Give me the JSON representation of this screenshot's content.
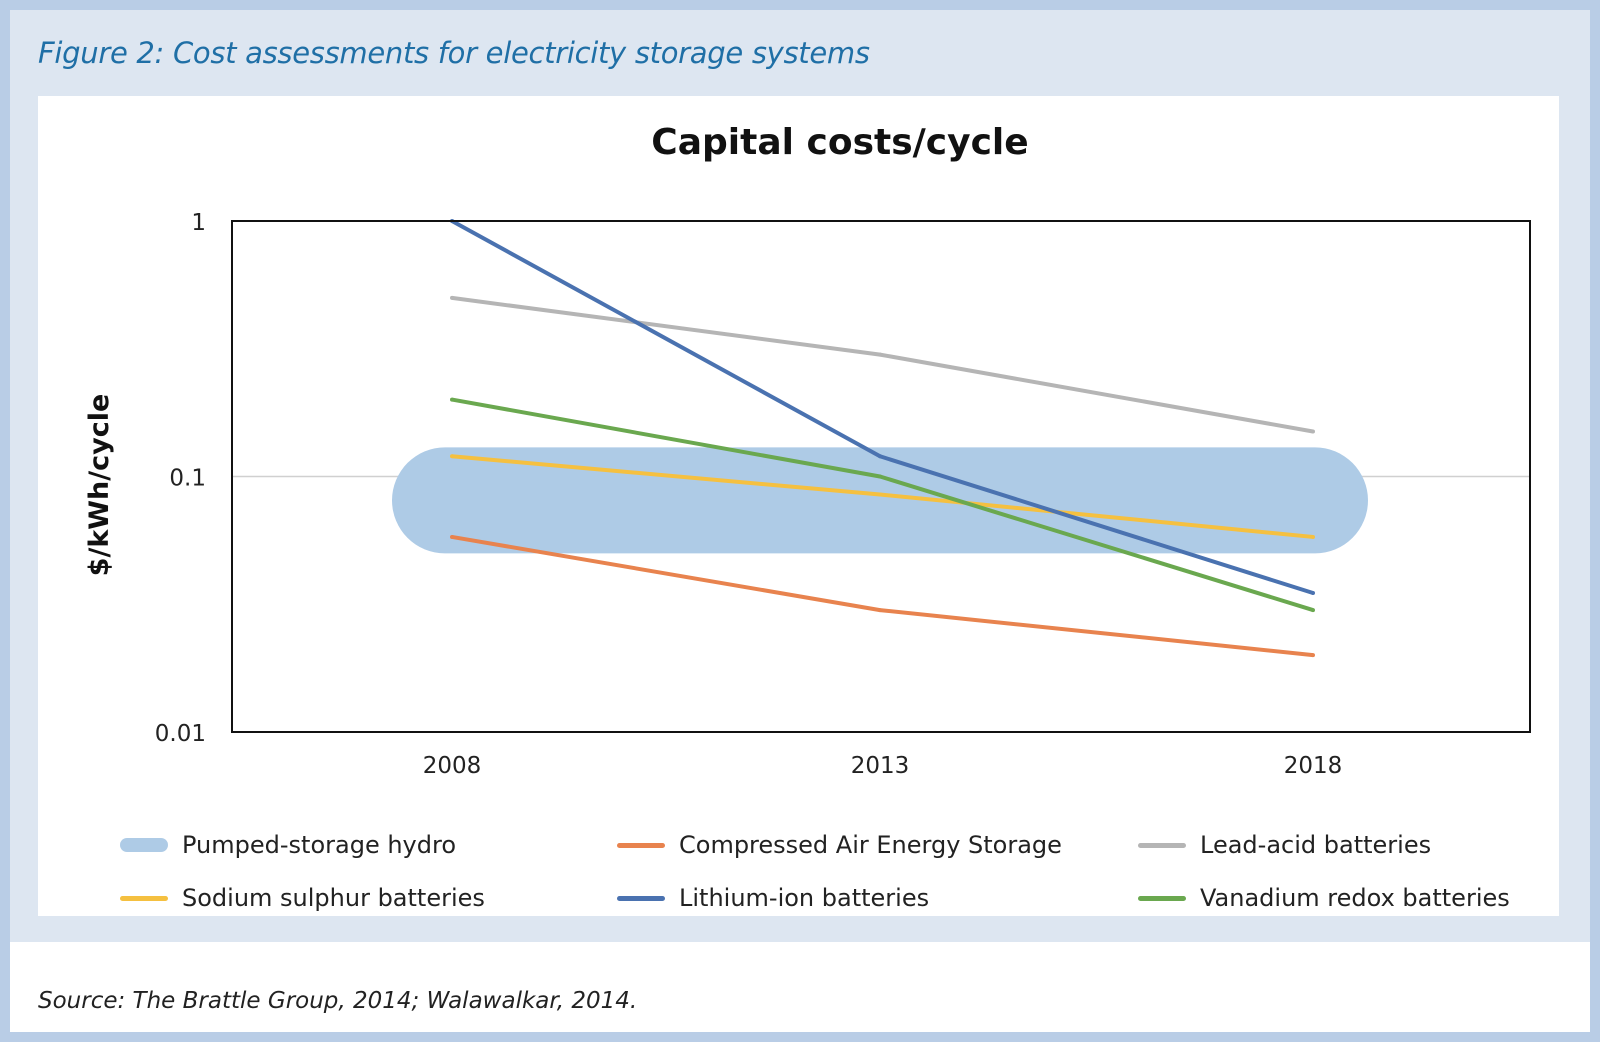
{
  "figure": {
    "title": "Figure 2: Cost assessments for electricity storage systems",
    "source": "Source: The Brattle Group, 2014; Walawalkar, 2014."
  },
  "chart_data": {
    "type": "line",
    "title": "Capital costs/cycle",
    "xlabel": "",
    "ylabel": "$/kWh/cycle",
    "y_scale": "log",
    "ylim": [
      0.01,
      1
    ],
    "y_ticks": [
      "1",
      "0.1",
      "0.01"
    ],
    "y_tick_values": [
      1,
      0.1,
      0.01
    ],
    "categories": [
      "2008",
      "2013",
      "2018"
    ],
    "grid": "horizontal line at 0.1",
    "legend_position": "bottom",
    "band": {
      "name": "Pumped-storage hydro",
      "color": "#aecbe6",
      "range": [
        0.05,
        0.13
      ]
    },
    "series": [
      {
        "name": "Compressed Air Energy Storage",
        "color": "#e8834e",
        "values": [
          0.058,
          0.03,
          0.02
        ]
      },
      {
        "name": "Lead-acid batteries",
        "color": "#b5b5b5",
        "values": [
          0.5,
          0.3,
          0.15
        ]
      },
      {
        "name": "Sodium sulphur batteries",
        "color": "#f5c040",
        "values": [
          0.12,
          0.085,
          0.058
        ]
      },
      {
        "name": "Lithium-ion batteries",
        "color": "#4a72b0",
        "values": [
          1.0,
          0.12,
          0.035
        ]
      },
      {
        "name": "Vanadium redox batteries",
        "color": "#6aa84f",
        "values": [
          0.2,
          0.1,
          0.03
        ]
      }
    ],
    "legend": [
      {
        "label": "Pumped-storage hydro",
        "color": "#aecbe6",
        "kind": "band"
      },
      {
        "label": "Compressed Air Energy Storage",
        "color": "#e8834e",
        "kind": "line"
      },
      {
        "label": "Lead-acid batteries",
        "color": "#b5b5b5",
        "kind": "line"
      },
      {
        "label": "Sodium sulphur batteries",
        "color": "#f5c040",
        "kind": "line"
      },
      {
        "label": "Lithium-ion batteries",
        "color": "#4a72b0",
        "kind": "line"
      },
      {
        "label": "Vanadium redox batteries",
        "color": "#6aa84f",
        "kind": "line"
      }
    ]
  }
}
